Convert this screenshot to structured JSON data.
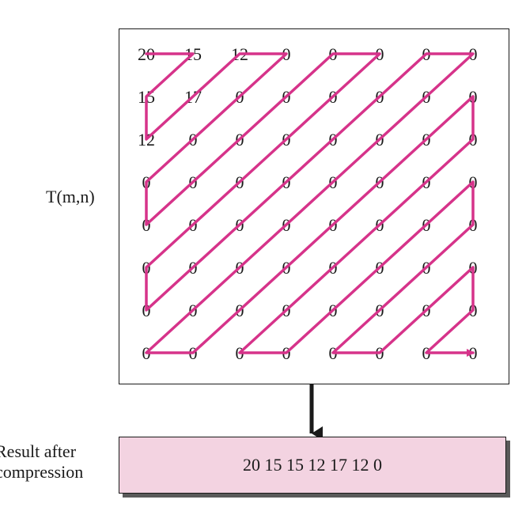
{
  "matrix": {
    "label": "T(m,n)",
    "rows": [
      [
        "20",
        "15",
        "12",
        "0",
        "0",
        "0",
        "0",
        "0"
      ],
      [
        "15",
        "17",
        "0",
        "0",
        "0",
        "0",
        "0",
        "0"
      ],
      [
        "12",
        "0",
        "0",
        "0",
        "0",
        "0",
        "0",
        "0"
      ],
      [
        "0",
        "0",
        "0",
        "0",
        "0",
        "0",
        "0",
        "0"
      ],
      [
        "0",
        "0",
        "0",
        "0",
        "0",
        "0",
        "0",
        "0"
      ],
      [
        "0",
        "0",
        "0",
        "0",
        "0",
        "0",
        "0",
        "0"
      ],
      [
        "0",
        "0",
        "0",
        "0",
        "0",
        "0",
        "0",
        "0"
      ],
      [
        "0",
        "0",
        "0",
        "0",
        "0",
        "0",
        "0",
        "0"
      ]
    ]
  },
  "result": {
    "label_line1": "Result after",
    "label_line2": "compression",
    "value": "20 15 15 12 17 12 0"
  },
  "colors": {
    "zigzag": "#d6338a",
    "arrow": "#1a1a1a",
    "result_fill": "#f3d3e1"
  }
}
